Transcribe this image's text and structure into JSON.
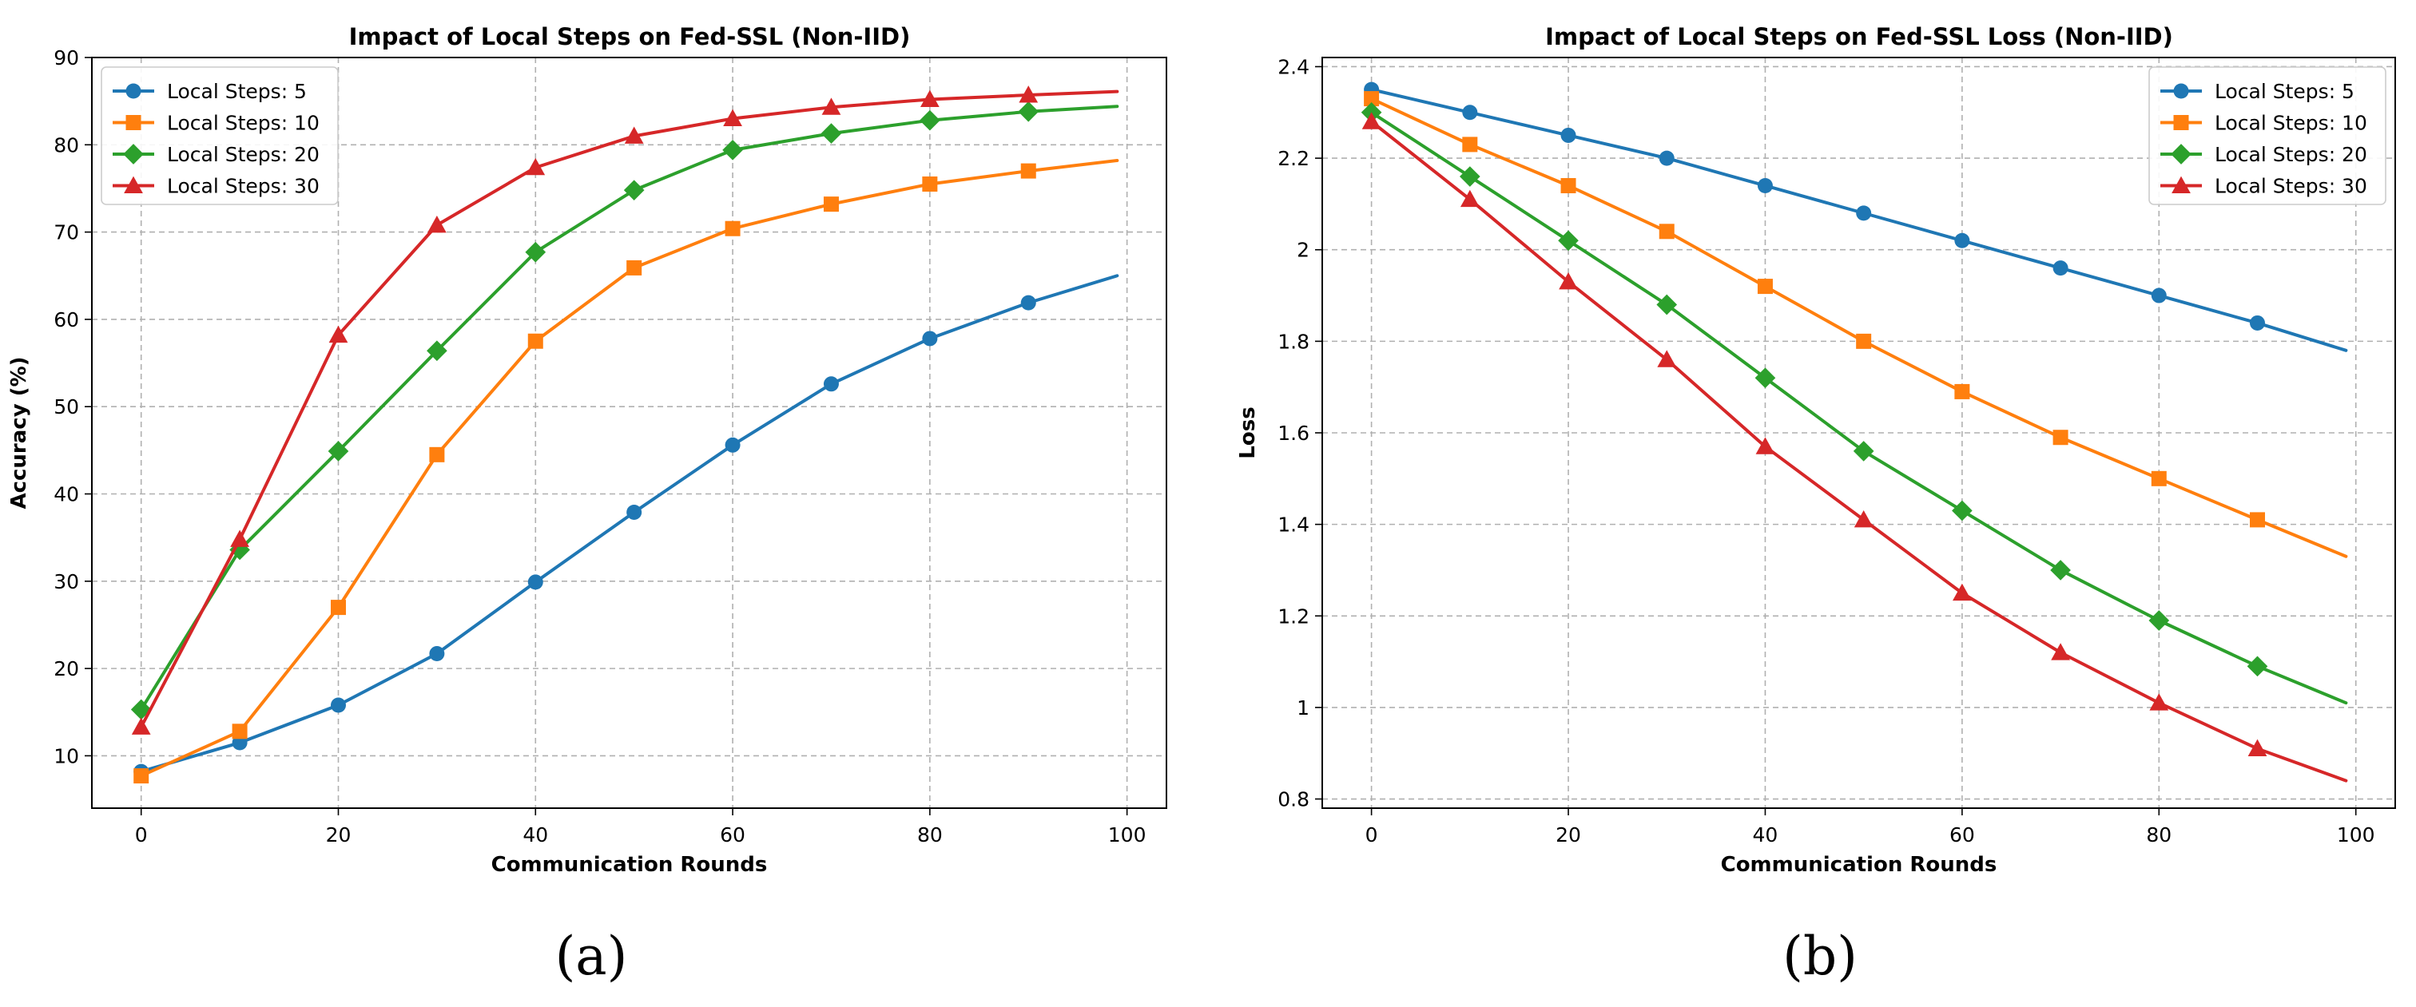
{
  "panels": [
    {
      "caption": "(a)"
    },
    {
      "caption": "(b)"
    }
  ],
  "chart_data": [
    {
      "type": "line",
      "title": "Impact of Local Steps on Fed-SSL (Non-IID)",
      "xlabel": "Communication Rounds",
      "ylabel": "Accuracy (%)",
      "xlim": [
        -5,
        104
      ],
      "ylim": [
        4,
        90
      ],
      "xticks": [
        0,
        20,
        40,
        60,
        80,
        100
      ],
      "yticks": [
        10,
        20,
        30,
        40,
        50,
        60,
        70,
        80,
        90
      ],
      "grid": true,
      "legend_position": "upper-left",
      "x": [
        0,
        10,
        20,
        30,
        40,
        50,
        60,
        70,
        80,
        90,
        99
      ],
      "series": [
        {
          "name": "Local Steps: 5",
          "color": "#1f77b4",
          "marker": "circle",
          "values": [
            8.2,
            11.5,
            15.8,
            21.7,
            29.9,
            37.9,
            45.6,
            52.6,
            57.8,
            61.9,
            65.0
          ]
        },
        {
          "name": "Local Steps: 10",
          "color": "#ff7f0e",
          "marker": "square",
          "values": [
            7.7,
            12.8,
            27.0,
            44.5,
            57.5,
            65.9,
            70.4,
            73.2,
            75.5,
            77.0,
            78.2
          ]
        },
        {
          "name": "Local Steps: 20",
          "color": "#2ca02c",
          "marker": "diamond",
          "values": [
            15.3,
            33.6,
            44.9,
            56.4,
            67.7,
            74.8,
            79.4,
            81.3,
            82.8,
            83.8,
            84.4
          ]
        },
        {
          "name": "Local Steps: 30",
          "color": "#d62728",
          "marker": "triangle",
          "values": [
            13.3,
            34.8,
            58.2,
            70.8,
            77.4,
            81.0,
            83.0,
            84.3,
            85.2,
            85.7,
            86.1
          ]
        }
      ]
    },
    {
      "type": "line",
      "title": "Impact of Local Steps on Fed-SSL Loss (Non-IID)",
      "xlabel": "Communication Rounds",
      "ylabel": "Loss",
      "xlim": [
        -5,
        104
      ],
      "ylim": [
        0.78,
        2.42
      ],
      "xticks": [
        0,
        20,
        40,
        60,
        80,
        100
      ],
      "yticks": [
        0.8,
        1.0,
        1.2,
        1.4,
        1.6,
        1.8,
        2.0,
        2.2,
        2.4
      ],
      "grid": true,
      "legend_position": "upper-right",
      "x": [
        0,
        10,
        20,
        30,
        40,
        50,
        60,
        70,
        80,
        90,
        99
      ],
      "series": [
        {
          "name": "Local Steps: 5",
          "color": "#1f77b4",
          "marker": "circle",
          "values": [
            2.35,
            2.3,
            2.25,
            2.2,
            2.14,
            2.08,
            2.02,
            1.96,
            1.9,
            1.84,
            1.78
          ]
        },
        {
          "name": "Local Steps: 10",
          "color": "#ff7f0e",
          "marker": "square",
          "values": [
            2.33,
            2.23,
            2.14,
            2.04,
            1.92,
            1.8,
            1.69,
            1.59,
            1.5,
            1.41,
            1.33
          ]
        },
        {
          "name": "Local Steps: 20",
          "color": "#2ca02c",
          "marker": "diamond",
          "values": [
            2.3,
            2.16,
            2.02,
            1.88,
            1.72,
            1.56,
            1.43,
            1.3,
            1.19,
            1.09,
            1.01
          ]
        },
        {
          "name": "Local Steps: 30",
          "color": "#d62728",
          "marker": "triangle",
          "values": [
            2.28,
            2.11,
            1.93,
            1.76,
            1.57,
            1.41,
            1.25,
            1.12,
            1.01,
            0.91,
            0.84
          ]
        }
      ]
    }
  ]
}
